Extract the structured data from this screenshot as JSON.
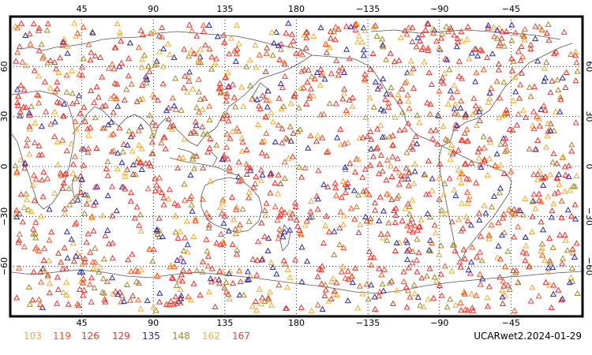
{
  "map": {
    "caption": "UCARwet2.2024-01-29",
    "top_lon_labels": [
      "45",
      "90",
      "135",
      "180",
      "−135",
      "−90",
      "−45"
    ],
    "bottom_lon_labels": [
      "45",
      "90",
      "135",
      "180",
      "−135",
      "−90",
      "−45"
    ],
    "left_lat_labels": [
      "60",
      "30",
      "0",
      "−30",
      "−60"
    ],
    "right_lat_labels": [
      "60",
      "30",
      "0",
      "−30",
      "−60"
    ],
    "legend": [
      {
        "label": "103",
        "color": "#f0a830"
      },
      {
        "label": "119",
        "color": "#ee5a2a"
      },
      {
        "label": "126",
        "color": "#e8362a"
      },
      {
        "label": "129",
        "color": "#e8302a"
      },
      {
        "label": "135",
        "color": "#2a2aa8"
      },
      {
        "label": "148",
        "color": "#a08a2a"
      },
      {
        "label": "162",
        "color": "#f0b030"
      },
      {
        "label": "167",
        "color": "#e84040"
      }
    ],
    "colors": {
      "frame": "#000000",
      "coastline": "#555555",
      "grid": "#000000",
      "background": "#ffffff"
    },
    "marker_icon": "triangle-outline-icon"
  }
}
